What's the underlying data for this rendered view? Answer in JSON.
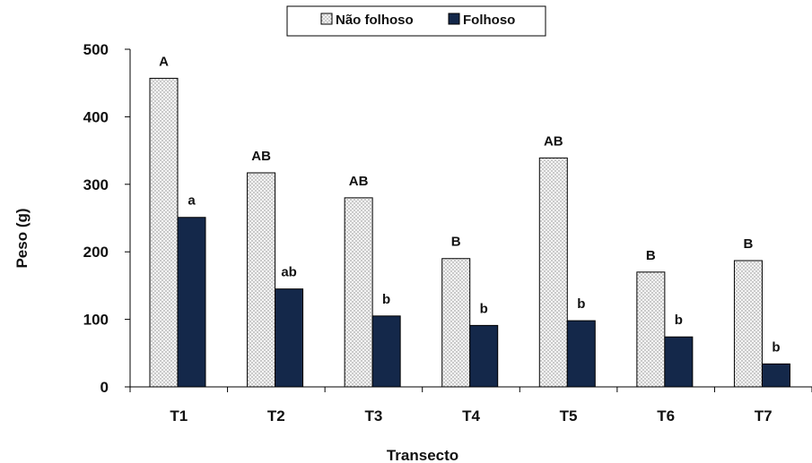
{
  "chart_data": {
    "type": "bar",
    "xlabel": "Transecto",
    "ylabel": "Peso (g)",
    "ylim": [
      0,
      500
    ],
    "yticks": [
      0,
      100,
      200,
      300,
      400,
      500
    ],
    "categories": [
      "T1",
      "T2",
      "T3",
      "T4",
      "T5",
      "T6",
      "T7"
    ],
    "series": [
      {
        "name": "Não folhoso",
        "values": [
          457,
          317,
          280,
          190,
          339,
          170,
          187
        ],
        "labels": [
          "A",
          "AB",
          "AB",
          "B",
          "AB",
          "B",
          "B"
        ],
        "color": "#eeeeee",
        "pattern": "dotted"
      },
      {
        "name": "Folhoso",
        "values": [
          251,
          145,
          105,
          91,
          98,
          74,
          34
        ],
        "labels": [
          "a",
          "ab",
          "b",
          "b",
          "b",
          "b",
          "b"
        ],
        "color": "#14284a",
        "pattern": "solid"
      }
    ],
    "legend": "top-center",
    "grid": false
  }
}
